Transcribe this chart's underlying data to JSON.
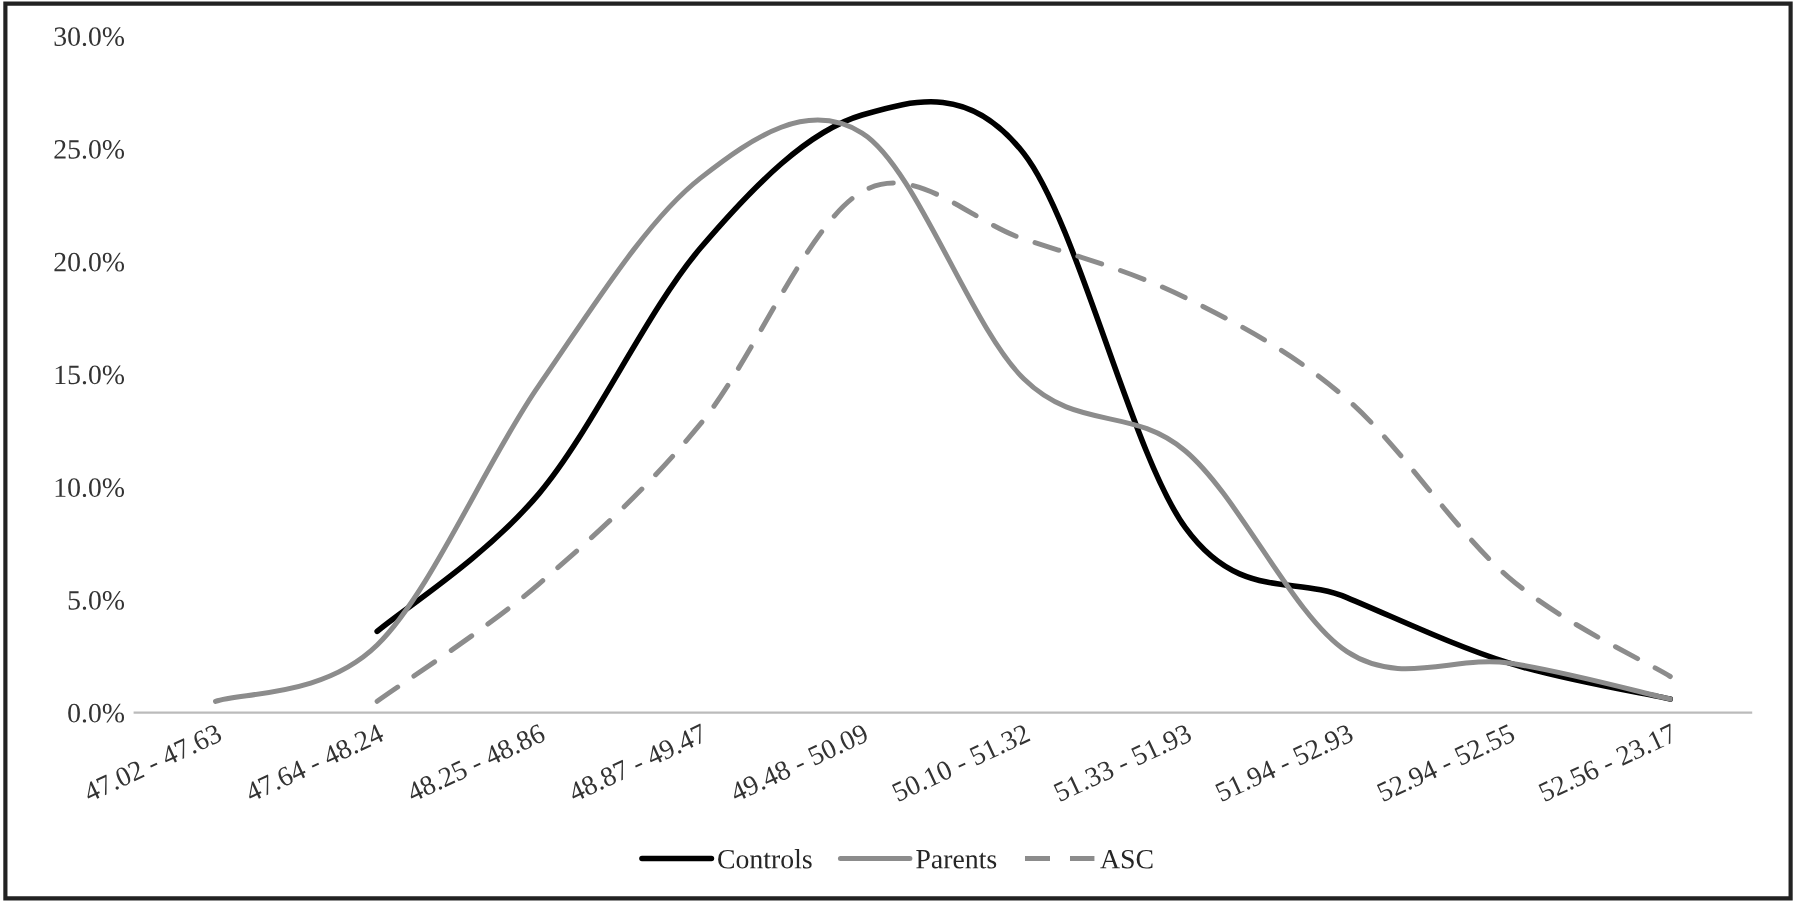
{
  "chart_data": {
    "type": "line",
    "categories": [
      "47.02 - 47.63",
      "47.64 - 48.24",
      "48.25 - 48.86",
      "48.87 - 49.47",
      "49.48 - 50.09",
      "50.10 - 51.32",
      "51.33 - 51.93",
      "51.94 - 52.93",
      "52.94 - 52.55",
      "52.56 - 23.17"
    ],
    "series": [
      {
        "name": "Controls",
        "color": "#000000",
        "line_style": "solid",
        "values": [
          null,
          3.6,
          9.7,
          20.6,
          26.5,
          24.8,
          8.2,
          5.1,
          2.2,
          0.6
        ]
      },
      {
        "name": "Parents",
        "color": "#8c8c8c",
        "line_style": "solid",
        "values": [
          0.5,
          3.0,
          14.5,
          23.7,
          25.7,
          14.8,
          11.6,
          2.7,
          2.2,
          0.6
        ]
      },
      {
        "name": "ASC",
        "color": "#8c8c8c",
        "line_style": "dashed",
        "values": [
          null,
          0.5,
          5.7,
          12.8,
          23.1,
          21.0,
          18.4,
          13.9,
          6.0,
          1.6
        ]
      }
    ],
    "ylim": [
      0,
      30
    ],
    "yticks": [
      {
        "value": 0,
        "label": "0.0%"
      },
      {
        "value": 5,
        "label": "5.0%"
      },
      {
        "value": 10,
        "label": "10.0%"
      },
      {
        "value": 15,
        "label": "15.0%"
      },
      {
        "value": 20,
        "label": "20.0%"
      },
      {
        "value": 25,
        "label": "25.0%"
      },
      {
        "value": 30,
        "label": "30.0%"
      }
    ],
    "grid": false,
    "legend": "bottom",
    "marker": "none"
  }
}
